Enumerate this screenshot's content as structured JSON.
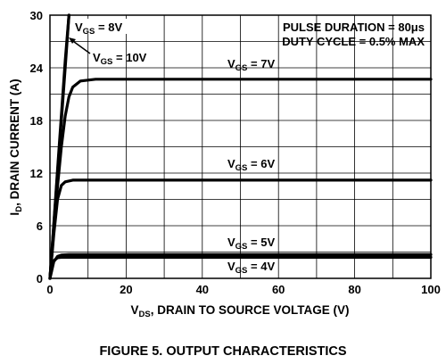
{
  "figure_caption": "FIGURE 5.  OUTPUT CHARACTERISTICS",
  "annotations": [
    "PULSE DURATION = 80μs",
    "DUTY CYCLE = 0.5% MAX"
  ],
  "chart_data": {
    "type": "line",
    "title": "",
    "xlabel": "V",
    "xlabel_sub": "DS",
    "xlabel_rest": ", DRAIN TO SOURCE VOLTAGE (V)",
    "ylabel": "I",
    "ylabel_sub": "D",
    "ylabel_rest": ", DRAIN CURRENT (A)",
    "xlim": [
      0,
      100
    ],
    "ylim": [
      0,
      30
    ],
    "xticks": [
      0,
      20,
      40,
      60,
      80,
      100
    ],
    "yticks": [
      0,
      6,
      12,
      18,
      24,
      30
    ],
    "grid": true,
    "series": [
      {
        "name_main": "V",
        "name_sub": "GS",
        "name_rest": " = 4V",
        "x": [
          0,
          1,
          2,
          3,
          100
        ],
        "y": [
          0,
          2.0,
          2.35,
          2.4,
          2.4
        ]
      },
      {
        "name_main": "V",
        "name_sub": "GS",
        "name_rest": " = 5V",
        "x": [
          0,
          1,
          2,
          3,
          5,
          100
        ],
        "y": [
          0,
          1.9,
          2.5,
          2.65,
          2.7,
          2.7
        ]
      },
      {
        "name_main": "V",
        "name_sub": "GS",
        "name_rest": " = 6V",
        "x": [
          0,
          1,
          2,
          3,
          4,
          6,
          100
        ],
        "y": [
          0,
          5.0,
          9.0,
          10.6,
          11.0,
          11.2,
          11.2
        ]
      },
      {
        "name_main": "V",
        "name_sub": "GS",
        "name_rest": " = 7V",
        "x": [
          0,
          1,
          2,
          3,
          4,
          5,
          6,
          8,
          12,
          100
        ],
        "y": [
          0,
          5.5,
          10.5,
          15.0,
          18.5,
          20.7,
          21.8,
          22.5,
          22.7,
          22.7
        ]
      },
      {
        "name_main": "V",
        "name_sub": "GS",
        "name_rest": " = 8V",
        "x": [
          0,
          1,
          2,
          3,
          4,
          5
        ],
        "y": [
          0,
          6.0,
          12.0,
          18.0,
          24.0,
          30.0
        ]
      },
      {
        "name_main": "V",
        "name_sub": "GS",
        "name_rest": " = 10V",
        "x": [
          0,
          1,
          2,
          3,
          4,
          5
        ],
        "y": [
          0,
          6.2,
          12.4,
          18.6,
          24.8,
          30.0
        ]
      }
    ]
  }
}
